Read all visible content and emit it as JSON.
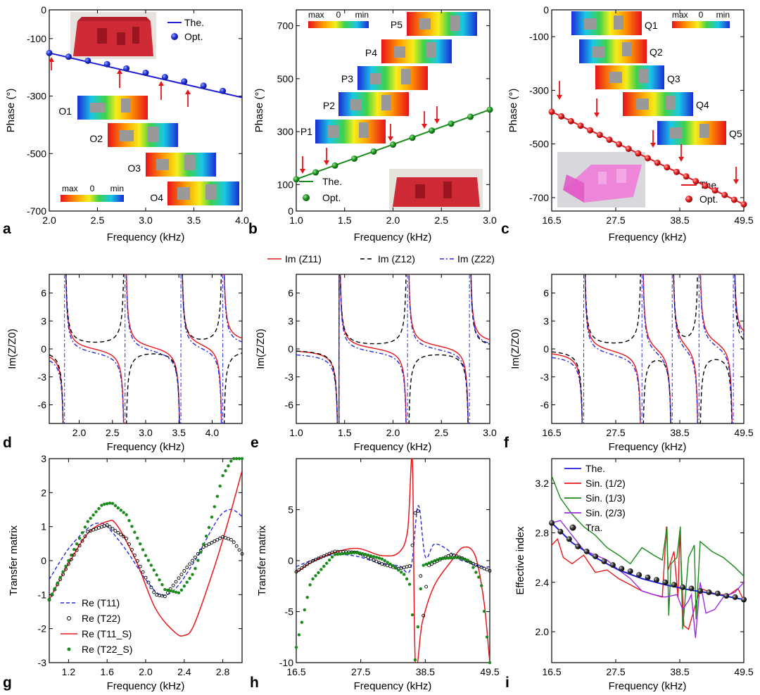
{
  "panels": {
    "a": {
      "label": "a",
      "xlabel": "Frequency (kHz)",
      "ylabel": "Phase (°)"
    },
    "b": {
      "label": "b",
      "xlabel": "Frequency (kHz)",
      "ylabel": "Phase (°)"
    },
    "c": {
      "label": "c",
      "xlabel": "Frequency (kHz)",
      "ylabel": "Phase (°)"
    },
    "d": {
      "label": "d",
      "xlabel": "Frequency (kHz)",
      "ylabel": "Im(Z/Z0)"
    },
    "e": {
      "label": "e",
      "xlabel": "Frequency (kHz)",
      "ylabel": "Im(Z/Z0)"
    },
    "f": {
      "label": "f",
      "xlabel": "Frequency (kHz)",
      "ylabel": "Im(Z/Z0)"
    },
    "g": {
      "label": "g",
      "xlabel": "Frequency (kHz)",
      "ylabel": "Transfer matrix"
    },
    "h": {
      "label": "h",
      "xlabel": "Frequency (kHz)",
      "ylabel": "Transfer matrix"
    },
    "i": {
      "label": "i",
      "xlabel": "Frequency (kHz)",
      "ylabel": "Effective index"
    }
  },
  "legends": {
    "abc": [
      "The.",
      "Opt."
    ],
    "def": [
      "Im (Z11)",
      "Im (Z12)",
      "Im (Z22)"
    ],
    "g": [
      "Re (T11)",
      "Re (T22)",
      "Re (T11_S)",
      "Re (T22_S)"
    ],
    "i": [
      "The.",
      "Sin. (1/2)",
      "Sin. (1/3)",
      "Sin. (2/3)",
      "Tra."
    ]
  },
  "insets": {
    "a": [
      "O1",
      "O2",
      "O3",
      "O4"
    ],
    "b": [
      "P1",
      "P2",
      "P3",
      "P4",
      "P5"
    ],
    "c": [
      "Q1",
      "Q2",
      "Q3",
      "Q4",
      "Q5"
    ]
  },
  "colorbar": {
    "max": "max",
    "mid": "0",
    "min": "min"
  },
  "colors": {
    "blue": "#1f1fd6",
    "green": "#1a8a1a",
    "red": "#e8161b",
    "dashblue": "#2a2ae0",
    "purple": "#9a2be2",
    "arrow": "#e8161b",
    "model": "#d92b36"
  },
  "chart_data": [
    {
      "panel": "a",
      "type": "line",
      "xlabel": "Frequency (kHz)",
      "ylabel": "Phase (°)",
      "xlim": [
        2.0,
        4.0
      ],
      "ylim": [
        -700,
        0
      ],
      "xticks": [
        "2.0",
        "2.5",
        "3.0",
        "3.5",
        "4.0"
      ],
      "yticks": [
        "-700",
        "-500",
        "-300",
        "-100",
        "0"
      ],
      "series": [
        {
          "name": "The.",
          "x": [
            2.0,
            4.0
          ],
          "y": [
            -150,
            -305
          ]
        },
        {
          "name": "Opt.",
          "x": [
            2.0,
            2.2,
            2.4,
            2.6,
            2.8,
            3.0,
            3.2,
            3.4,
            3.6,
            3.8
          ],
          "y": [
            -150,
            -163,
            -177,
            -189,
            -204,
            -219,
            -234,
            -249,
            -264,
            -282
          ]
        }
      ]
    },
    {
      "panel": "b",
      "type": "line",
      "xlabel": "Frequency (kHz)",
      "ylabel": "Phase (°)",
      "xlim": [
        1.0,
        3.0
      ],
      "ylim": [
        0,
        760
      ],
      "xticks": [
        "1.0",
        "1.5",
        "2.0",
        "2.5",
        "3.0"
      ],
      "yticks": [
        "0",
        "100",
        "300",
        "500",
        "700"
      ],
      "series": [
        {
          "name": "The.",
          "x": [
            1.0,
            3.0
          ],
          "y": [
            120,
            383
          ]
        },
        {
          "name": "Opt.",
          "x": [
            1.0,
            1.2,
            1.4,
            1.6,
            1.8,
            2.0,
            2.2,
            2.4,
            2.6,
            2.8,
            3.0
          ],
          "y": [
            120,
            146,
            172,
            198,
            225,
            251,
            277,
            304,
            330,
            356,
            383
          ]
        }
      ]
    },
    {
      "panel": "c",
      "type": "line",
      "xlabel": "Frequency (kHz)",
      "ylabel": "Phase (°)",
      "xlim": [
        16.5,
        49.5
      ],
      "ylim": [
        -750,
        0
      ],
      "xticks": [
        "16.5",
        "27.5",
        "38.5",
        "49.5"
      ],
      "yticks": [
        "-700",
        "-500",
        "-300",
        "-100",
        "0"
      ],
      "series": [
        {
          "name": "The.",
          "x": [
            16.5,
            49.5
          ],
          "y": [
            -380,
            -725
          ]
        },
        {
          "name": "Opt.",
          "x": [
            16.5,
            18.15,
            19.8,
            21.45,
            23.1,
            24.75,
            26.4,
            28.05,
            29.7,
            31.35,
            33.0,
            34.65,
            36.3,
            37.95,
            39.6,
            41.25,
            42.9,
            44.55,
            46.2,
            47.85,
            49.5
          ],
          "y": [
            -380,
            -397,
            -415,
            -432,
            -449,
            -466,
            -484,
            -501,
            -518,
            -535,
            -553,
            -570,
            -587,
            -604,
            -621,
            -639,
            -656,
            -673,
            -690,
            -708,
            -725
          ]
        }
      ]
    },
    {
      "panel": "d",
      "type": "line",
      "xlabel": "Frequency (kHz)",
      "ylabel": "Im(Z/Z0)",
      "xlim": [
        1.55,
        4.45
      ],
      "ylim": [
        -8,
        8
      ],
      "xticks": [
        "2.0",
        "2.5",
        "3.0",
        "3.5",
        "4.0"
      ],
      "yticks": [
        "-6",
        "-3",
        "0",
        "3",
        "6"
      ],
      "resonances": [
        1.78,
        2.69,
        3.53,
        4.16
      ],
      "series": [
        {
          "name": "Im (Z11)"
        },
        {
          "name": "Im (Z12)"
        },
        {
          "name": "Im (Z22)"
        }
      ]
    },
    {
      "panel": "e",
      "type": "line",
      "xlabel": "Frequency (kHz)",
      "ylabel": "Im(Z/Z0)",
      "xlim": [
        1.0,
        3.0
      ],
      "ylim": [
        -8,
        8
      ],
      "xticks": [
        "1.0",
        "1.5",
        "2.0",
        "2.5",
        "3.0"
      ],
      "yticks": [
        "-6",
        "-3",
        "0",
        "3",
        "6"
      ],
      "resonances": [
        1.44,
        2.15,
        2.79
      ],
      "series": [
        {
          "name": "Im (Z11)"
        },
        {
          "name": "Im (Z12)"
        },
        {
          "name": "Im (Z22)"
        }
      ]
    },
    {
      "panel": "f",
      "type": "line",
      "xlabel": "Frequency (kHz)",
      "ylabel": "Im(Z/Z0)",
      "xlim": [
        16.5,
        49.5
      ],
      "ylim": [
        -8,
        8
      ],
      "xticks": [
        "16.5",
        "27.5",
        "38.5",
        "49.5"
      ],
      "yticks": [
        "-6",
        "-3",
        "0",
        "3",
        "6"
      ],
      "resonances": [
        22.0,
        32.0,
        37.2,
        41.8,
        47.7
      ],
      "series": [
        {
          "name": "Im (Z11)"
        },
        {
          "name": "Im (Z12)"
        },
        {
          "name": "Im (Z22)"
        }
      ]
    },
    {
      "panel": "g",
      "type": "line",
      "xlabel": "Frequency (kHz)",
      "ylabel": "Transfer matrix",
      "xlim": [
        1.0,
        3.0
      ],
      "ylim": [
        -3,
        3
      ],
      "xticks": [
        "1.2",
        "1.6",
        "2.0",
        "2.4",
        "2.8"
      ],
      "yticks": [
        "-3",
        "-2",
        "-1",
        "0",
        "1",
        "2",
        "3"
      ],
      "series": [
        {
          "name": "Re (T11)",
          "x": [
            1.0,
            1.2,
            1.4,
            1.5,
            1.6,
            1.8,
            2.0,
            2.15,
            2.3,
            2.5,
            2.7,
            2.8,
            2.9,
            3.0
          ],
          "y": [
            -0.55,
            0.35,
            0.95,
            1.1,
            1.0,
            0.3,
            -0.55,
            -1.0,
            -0.85,
            -0.05,
            1.0,
            1.4,
            1.5,
            1.3
          ]
        },
        {
          "name": "Re (T22)",
          "x": [
            1.0,
            1.2,
            1.4,
            1.6,
            1.8,
            2.0,
            2.1,
            2.2,
            2.4,
            2.6,
            2.8,
            2.9,
            3.0
          ],
          "y": [
            -1.15,
            -0.1,
            0.85,
            1.05,
            0.65,
            -0.5,
            -1.0,
            -1.05,
            -0.3,
            0.4,
            0.7,
            0.6,
            0.2
          ]
        },
        {
          "name": "Re (T11_S)",
          "x": [
            1.0,
            1.2,
            1.4,
            1.6,
            1.7,
            1.9,
            2.1,
            2.3,
            2.4,
            2.5,
            2.7,
            2.85,
            3.0
          ],
          "y": [
            -1.15,
            -0.1,
            0.8,
            1.15,
            1.05,
            0.0,
            -1.4,
            -2.1,
            -2.2,
            -1.9,
            -0.3,
            1.1,
            2.65
          ]
        },
        {
          "name": "Re (T22_S)",
          "x": [
            1.0,
            1.2,
            1.4,
            1.55,
            1.65,
            1.8,
            2.0,
            2.2,
            2.35,
            2.5,
            2.65,
            2.8,
            2.9
          ],
          "y": [
            -1.15,
            0.0,
            1.15,
            1.65,
            1.7,
            1.35,
            0.15,
            -0.85,
            -0.95,
            -0.35,
            0.9,
            2.5,
            3.0
          ]
        }
      ]
    },
    {
      "panel": "h",
      "type": "line",
      "xlabel": "Frequency (kHz)",
      "ylabel": "Transfer matrix",
      "xlim": [
        16.5,
        49.5
      ],
      "ylim": [
        -10,
        10
      ],
      "xticks": [
        "16.5",
        "27.5",
        "38.5",
        "49.5"
      ],
      "yticks": [
        "-10",
        "-5",
        "0",
        "5"
      ],
      "series": [
        {
          "name": "Re (T11)",
          "x": [
            16.5,
            19,
            23,
            27,
            31,
            34,
            36,
            37.3,
            38.5,
            40,
            42,
            44,
            46,
            48,
            49.5
          ],
          "y": [
            -0.6,
            0.0,
            0.6,
            0.4,
            -0.3,
            -0.5,
            -0.8,
            5.4,
            0.4,
            1.6,
            1.2,
            0.2,
            -0.2,
            -0.6,
            -0.6
          ]
        },
        {
          "name": "Re (T22)",
          "x": [
            16.5,
            19,
            23,
            27,
            31,
            34,
            36,
            37.0,
            37.4,
            38.0,
            39,
            41,
            43,
            45,
            47,
            49.5
          ],
          "y": [
            -1.1,
            -0.1,
            0.9,
            0.8,
            -0.3,
            -0.8,
            -0.5,
            6.2,
            4.0,
            -6.5,
            -0.5,
            0.1,
            0.6,
            0.2,
            -0.4,
            -1.0
          ]
        },
        {
          "name": "Re (T11_S)",
          "x": [
            16.5,
            19,
            23,
            27,
            31,
            34,
            35.5,
            36.3,
            36.8,
            38,
            40,
            43,
            45,
            47,
            48.5,
            49.5
          ],
          "y": [
            -1.2,
            -0.2,
            0.8,
            1.2,
            0.5,
            0.8,
            3.0,
            9.8,
            -10.0,
            -6.0,
            -2.5,
            0.0,
            1.3,
            0.5,
            -4.0,
            -10.0
          ]
        },
        {
          "name": "Re (T22_S)",
          "x": [
            16.5,
            19,
            23,
            27,
            31,
            33,
            35,
            36.0,
            36.8,
            38,
            41,
            44,
            46,
            48,
            49.5
          ],
          "y": [
            -8.5,
            -2.0,
            0.6,
            0.8,
            0.2,
            -0.5,
            -1.4,
            -2.5,
            -10.0,
            -0.5,
            0.2,
            0.3,
            0.0,
            -2.0,
            -10.0
          ]
        }
      ]
    },
    {
      "panel": "i",
      "type": "line",
      "xlabel": "Frequency (kHz)",
      "ylabel": "Effective index",
      "xlim": [
        16.5,
        49.5
      ],
      "ylim": [
        1.75,
        3.4
      ],
      "xticks": [
        "16.5",
        "27.5",
        "38.5",
        "49.5"
      ],
      "yticks": [
        "2.0",
        "2.4",
        "2.8",
        "3.2"
      ],
      "series": [
        {
          "name": "The.",
          "x": [
            16.5,
            20,
            24,
            28,
            32,
            36,
            40,
            44,
            49.5
          ],
          "y": [
            2.88,
            2.72,
            2.6,
            2.5,
            2.43,
            2.38,
            2.34,
            2.31,
            2.26
          ]
        },
        {
          "name": "Sin. (1/2)",
          "x": [
            16.5,
            17.5,
            18.5,
            20,
            22,
            24,
            26,
            28,
            30,
            32,
            34,
            35.5,
            36.2,
            36.5,
            37.5,
            38.2,
            38.5,
            39.2,
            40,
            42,
            45,
            47,
            48.5,
            49.5
          ],
          "y": [
            2.7,
            2.75,
            2.6,
            2.55,
            2.62,
            2.48,
            2.5,
            2.43,
            2.38,
            2.33,
            2.3,
            2.28,
            2.85,
            2.5,
            2.65,
            2.28,
            2.82,
            2.05,
            2.02,
            2.35,
            2.3,
            2.3,
            2.35,
            2.25
          ]
        },
        {
          "name": "Sin. (1/3)",
          "x": [
            16.5,
            18,
            20,
            22,
            24,
            26,
            28,
            30,
            32,
            34,
            35.5,
            36.3,
            36.6,
            37,
            38,
            38.6,
            39,
            40,
            41,
            41.3,
            42,
            44,
            46,
            48,
            49.5
          ],
          "y": [
            3.26,
            3.08,
            2.95,
            2.85,
            2.78,
            2.68,
            2.62,
            2.55,
            2.68,
            2.62,
            2.58,
            2.85,
            2.13,
            2.55,
            2.6,
            2.85,
            2.02,
            2.6,
            2.7,
            2.1,
            2.73,
            2.65,
            2.6,
            2.52,
            2.45
          ]
        },
        {
          "name": "Sin. (2/3)",
          "x": [
            16.5,
            18,
            20,
            22,
            24,
            26,
            28,
            30,
            32,
            34,
            36,
            38,
            39,
            40,
            40.5,
            41.2,
            42,
            43,
            44.5,
            46,
            48,
            49.5
          ],
          "y": [
            2.88,
            2.9,
            2.78,
            2.66,
            2.62,
            2.58,
            2.5,
            2.43,
            2.33,
            2.3,
            2.28,
            2.3,
            2.18,
            2.25,
            2.3,
            1.95,
            2.4,
            2.15,
            2.18,
            2.28,
            2.32,
            2.4
          ]
        },
        {
          "name": "Tra.",
          "x": [
            16.5,
            18,
            19.5,
            21,
            22.5,
            24,
            25.5,
            27,
            28.5,
            30,
            31.5,
            33,
            34.5,
            36,
            37.5,
            39,
            40.5,
            42,
            43.5,
            45,
            46.5,
            48,
            49.5
          ],
          "y": [
            2.88,
            2.81,
            2.75,
            2.69,
            2.65,
            2.61,
            2.57,
            2.54,
            2.51,
            2.49,
            2.46,
            2.44,
            2.42,
            2.4,
            2.38,
            2.36,
            2.35,
            2.33,
            2.32,
            2.31,
            2.29,
            2.28,
            2.26
          ]
        }
      ]
    }
  ]
}
